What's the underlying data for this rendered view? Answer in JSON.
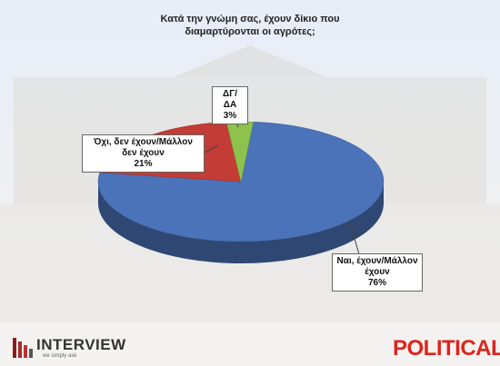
{
  "chart_data": {
    "type": "pie3d",
    "title": "Κατά την γνώμη σας, έχουν δίκιο που διαμαρτύρονται οι αγρότες;",
    "categories": [
      "Ναι, έχουν/Μάλλον έχουν",
      "Όχι, δεν έχουν/Μάλλον δεν έχουν",
      "ΔΓ/ΔΑ"
    ],
    "values": [
      76,
      21,
      3
    ],
    "value_labels": [
      "76%",
      "21%",
      "3%"
    ],
    "colors": [
      "#4a73b9",
      "#c43c36",
      "#8dc24c"
    ]
  },
  "branding": {
    "left_logo": "INTERVIEW",
    "left_tagline": "we simply ask",
    "right_logo": "POLITICAL"
  }
}
